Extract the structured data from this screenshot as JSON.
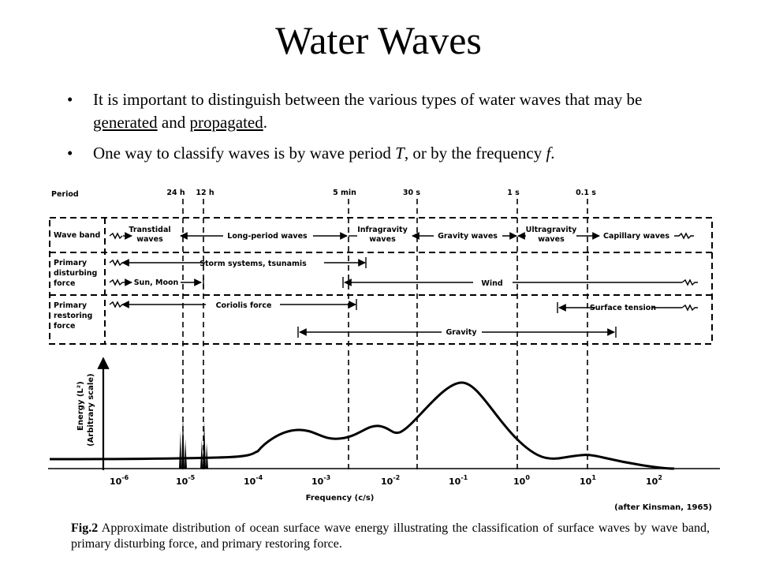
{
  "slide": {
    "title": "Water Waves",
    "bullets": [
      {
        "symbol": "•",
        "text_a": "It is important to distinguish between the various types of water waves that may be ",
        "text_u1": "generated",
        "text_b": " and ",
        "text_u2": "propagated",
        "text_c": "."
      },
      {
        "symbol": "•",
        "text_a": "One way to classify waves is by wave period ",
        "italic1": "T",
        "text_b": ", or by the frequency ",
        "italic2": "f",
        "text_c": "."
      }
    ]
  },
  "figure": {
    "period_header": "Period",
    "period_ticks": [
      "24 h",
      "12 h",
      "5 min",
      "30 s",
      "1 s",
      "0.1 s"
    ],
    "rows": {
      "wave_band": "Wave band",
      "disturbing_1": "Primary",
      "disturbing_2": "disturbing",
      "disturbing_3": "force",
      "restoring_1": "Primary",
      "restoring_2": "restoring",
      "restoring_3": "force"
    },
    "bands": {
      "transtidal_1": "Transtidal",
      "transtidal_2": "waves",
      "long_period": "Long-period waves",
      "infragravity_1": "Infragravity",
      "infragravity_2": "waves",
      "gravity_waves": "Gravity waves",
      "ultragravity_1": "Ultragravity",
      "ultragravity_2": "waves",
      "capillary": "Capillary waves"
    },
    "forces": {
      "storm": "Storm systems, tsunamis",
      "sun_moon": "Sun, Moon",
      "wind": "Wind",
      "coriolis": "Coriolis force",
      "surface_tension": "Surface tension",
      "gravity": "Gravity"
    },
    "y_label_1": "Energy (L²)",
    "y_label_2": "(Arbitrary scale)",
    "x_label": "Frequency (c/s)",
    "x_ticks": [
      {
        "base": "10",
        "exp": "-6"
      },
      {
        "base": "10",
        "exp": "-5"
      },
      {
        "base": "10",
        "exp": "-4"
      },
      {
        "base": "10",
        "exp": "-3"
      },
      {
        "base": "10",
        "exp": "-2"
      },
      {
        "base": "10",
        "exp": "-1"
      },
      {
        "base": "10",
        "exp": "0"
      },
      {
        "base": "10",
        "exp": "1"
      },
      {
        "base": "10",
        "exp": "2"
      }
    ],
    "credit": "(after Kinsman, 1965)"
  },
  "caption": {
    "label": "Fig.2",
    "text": " Approximate distribution of ocean surface wave energy illustrating the classification of surface waves by wave band, primary disturbing force, and primary restoring force."
  }
}
